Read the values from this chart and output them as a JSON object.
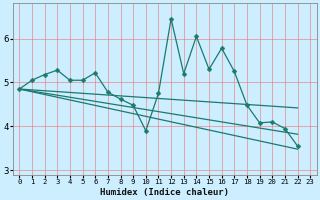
{
  "xlabel": "Humidex (Indice chaleur)",
  "bg_color": "#cceeff",
  "grid_color_h": "#e88080",
  "grid_color_v": "#e88080",
  "line_color": "#1a7a6e",
  "xlim": [
    -0.5,
    23.5
  ],
  "ylim": [
    2.9,
    6.8
  ],
  "yticks": [
    3,
    4,
    5,
    6
  ],
  "xticks": [
    0,
    1,
    2,
    3,
    4,
    5,
    6,
    7,
    8,
    9,
    10,
    11,
    12,
    13,
    14,
    15,
    16,
    17,
    18,
    19,
    20,
    21,
    22,
    23
  ],
  "lines": [
    {
      "x": [
        0,
        1,
        2,
        3,
        4,
        5,
        6,
        7,
        8,
        9,
        10,
        11,
        12,
        13,
        14,
        15,
        16,
        17,
        18,
        19,
        20,
        21,
        22
      ],
      "y": [
        4.85,
        5.05,
        5.18,
        5.28,
        5.05,
        5.05,
        5.22,
        4.78,
        4.62,
        4.48,
        3.9,
        4.75,
        6.45,
        5.2,
        6.05,
        5.3,
        5.78,
        5.25,
        4.48,
        4.08,
        4.1,
        3.95,
        3.55
      ],
      "marker": true
    },
    {
      "x": [
        0,
        22
      ],
      "y": [
        4.85,
        4.42
      ],
      "marker": false
    },
    {
      "x": [
        0,
        22
      ],
      "y": [
        4.85,
        3.82
      ],
      "marker": false
    },
    {
      "x": [
        0,
        22
      ],
      "y": [
        4.85,
        3.48
      ],
      "marker": false
    }
  ]
}
